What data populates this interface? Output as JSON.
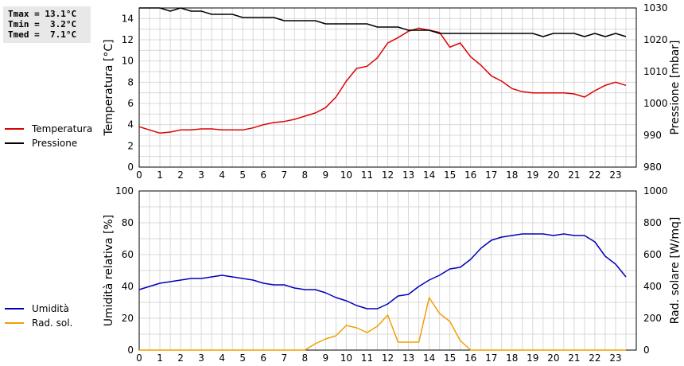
{
  "stats": {
    "tmax": "Tmax = 13.1°C",
    "tmin": "Tmin =  3.2°C",
    "tmed": "Tmed =  7.1°C"
  },
  "colors": {
    "temperatura": "#dd0000",
    "pressione": "#000000",
    "umidita": "#0000bb",
    "radsol": "#f0a000",
    "grid": "#d8d8d8"
  },
  "chart_data": [
    {
      "type": "line",
      "xlim": [
        0,
        24
      ],
      "x_ticks": [
        0,
        1,
        2,
        3,
        4,
        5,
        6,
        7,
        8,
        9,
        10,
        11,
        12,
        13,
        14,
        15,
        16,
        17,
        18,
        19,
        20,
        21,
        22,
        23
      ],
      "left_axis": {
        "label": "Temperatura [°C]",
        "ylim": [
          0,
          15
        ],
        "ticks": [
          0,
          2,
          4,
          6,
          8,
          10,
          12,
          14
        ]
      },
      "right_axis": {
        "label": "Pressione [mbar]",
        "ylim": [
          980,
          1030
        ],
        "ticks": [
          980,
          990,
          1000,
          1010,
          1020,
          1030
        ]
      },
      "grid": true,
      "legend_position": "left",
      "series": [
        {
          "name": "Temperatura",
          "axis": "left",
          "x": [
            0,
            0.5,
            1,
            1.5,
            2,
            2.5,
            3,
            3.5,
            4,
            4.5,
            5,
            5.5,
            6,
            6.5,
            7,
            7.5,
            8,
            8.5,
            9,
            9.5,
            10,
            10.5,
            11,
            11.5,
            12,
            12.5,
            13,
            13.5,
            14,
            14.5,
            15,
            15.5,
            16,
            16.5,
            17,
            17.5,
            18,
            18.5,
            19,
            19.5,
            20,
            20.5,
            21,
            21.5,
            22,
            22.5,
            23,
            23.5
          ],
          "y": [
            3.8,
            3.5,
            3.2,
            3.3,
            3.5,
            3.5,
            3.6,
            3.6,
            3.5,
            3.5,
            3.5,
            3.7,
            4.0,
            4.2,
            4.3,
            4.5,
            4.8,
            5.1,
            5.6,
            6.6,
            8.1,
            9.3,
            9.5,
            10.3,
            11.7,
            12.2,
            12.8,
            13.1,
            12.9,
            12.7,
            11.3,
            11.7,
            10.4,
            9.6,
            8.6,
            8.1,
            7.4,
            7.1,
            7.0,
            7.0,
            7.0,
            7.0,
            6.9,
            6.6,
            7.2,
            7.7,
            8.0,
            7.7
          ]
        },
        {
          "name": "Pressione",
          "axis": "right",
          "x": [
            0,
            0.5,
            1,
            1.5,
            2,
            2.5,
            3,
            3.5,
            4,
            4.5,
            5,
            5.5,
            6,
            6.5,
            7,
            7.5,
            8,
            8.5,
            9,
            9.5,
            10,
            10.5,
            11,
            11.5,
            12,
            12.5,
            13,
            13.5,
            14,
            14.5,
            15,
            15.5,
            16,
            16.5,
            17,
            17.5,
            18,
            18.5,
            19,
            19.5,
            20,
            20.5,
            21,
            21.5,
            22,
            22.5,
            23,
            23.5
          ],
          "y": [
            1030,
            1030,
            1030,
            1029,
            1030,
            1029,
            1029,
            1028,
            1028,
            1028,
            1027,
            1027,
            1027,
            1027,
            1026,
            1026,
            1026,
            1026,
            1025,
            1025,
            1025,
            1025,
            1025,
            1024,
            1024,
            1024,
            1023,
            1023,
            1023,
            1022,
            1022,
            1022,
            1022,
            1022,
            1022,
            1022,
            1022,
            1022,
            1022,
            1021,
            1022,
            1022,
            1022,
            1021,
            1022,
            1021,
            1022,
            1021
          ]
        }
      ]
    },
    {
      "type": "line",
      "xlim": [
        0,
        24
      ],
      "x_ticks": [
        0,
        1,
        2,
        3,
        4,
        5,
        6,
        7,
        8,
        9,
        10,
        11,
        12,
        13,
        14,
        15,
        16,
        17,
        18,
        19,
        20,
        21,
        22,
        23
      ],
      "left_axis": {
        "label": "Umidità relativa [%]",
        "ylim": [
          0,
          100
        ],
        "ticks": [
          0,
          20,
          40,
          60,
          80,
          100
        ]
      },
      "right_axis": {
        "label": "Rad. solare [W/mq]",
        "ylim": [
          0,
          1000
        ],
        "ticks": [
          0,
          200,
          400,
          600,
          800,
          1000
        ]
      },
      "grid": true,
      "legend_position": "left",
      "series": [
        {
          "name": "Umidità",
          "axis": "left",
          "x": [
            0,
            0.5,
            1,
            1.5,
            2,
            2.5,
            3,
            3.5,
            4,
            4.5,
            5,
            5.5,
            6,
            6.5,
            7,
            7.5,
            8,
            8.5,
            9,
            9.5,
            10,
            10.5,
            11,
            11.5,
            12,
            12.5,
            13,
            13.5,
            14,
            14.5,
            15,
            15.5,
            16,
            16.5,
            17,
            17.5,
            18,
            18.5,
            19,
            19.5,
            20,
            20.5,
            21,
            21.5,
            22,
            22.5,
            23,
            23.5
          ],
          "y": [
            38,
            40,
            42,
            43,
            44,
            45,
            45,
            46,
            47,
            46,
            45,
            44,
            42,
            41,
            41,
            39,
            38,
            38,
            36,
            33,
            31,
            28,
            26,
            26,
            29,
            34,
            35,
            40,
            44,
            47,
            51,
            52,
            57,
            64,
            69,
            71,
            72,
            73,
            73,
            73,
            72,
            73,
            72,
            72,
            68,
            59,
            54,
            46
          ]
        },
        {
          "name": "Rad. sol.",
          "axis": "right",
          "x": [
            0,
            0.5,
            1,
            1.5,
            2,
            2.5,
            3,
            3.5,
            4,
            4.5,
            5,
            5.5,
            6,
            6.5,
            7,
            7.5,
            8,
            8.5,
            9,
            9.5,
            10,
            10.5,
            11,
            11.5,
            12,
            12.5,
            13,
            13.5,
            14,
            14.5,
            15,
            15.5,
            16,
            16.5,
            17,
            17.5,
            18,
            18.5,
            19,
            19.5,
            20,
            20.5,
            21,
            21.5,
            22,
            22.5,
            23,
            23.5
          ],
          "y": [
            0,
            0,
            0,
            0,
            0,
            0,
            0,
            0,
            0,
            0,
            0,
            0,
            0,
            0,
            0,
            0,
            0,
            40,
            70,
            90,
            155,
            140,
            110,
            150,
            220,
            50,
            50,
            50,
            330,
            230,
            180,
            60,
            0,
            0,
            0,
            0,
            0,
            0,
            0,
            0,
            0,
            0,
            0,
            0,
            0,
            0,
            0,
            0
          ]
        }
      ]
    }
  ]
}
